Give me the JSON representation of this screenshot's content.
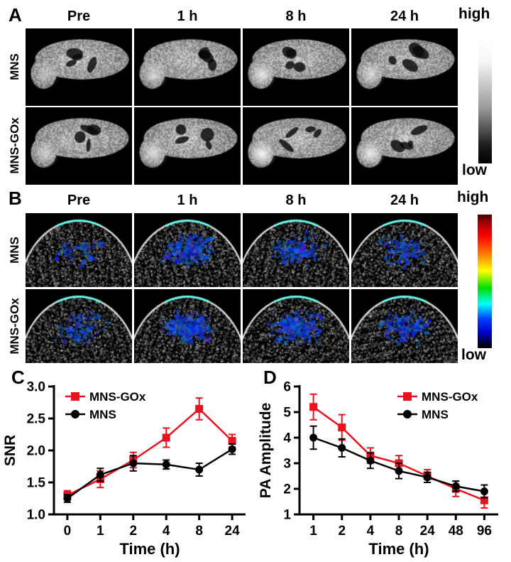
{
  "panel_a": {
    "label": "A",
    "columns": [
      "Pre",
      "1 h",
      "8 h",
      "24 h"
    ],
    "rows": [
      "MNS",
      "MNS-GOx"
    ],
    "colorbar_high": "high",
    "colorbar_low": "low"
  },
  "panel_b": {
    "label": "B",
    "columns": [
      "Pre",
      "1 h",
      "8 h",
      "24 h"
    ],
    "rows": [
      "MNS",
      "MNS-GOx"
    ],
    "colorbar_high": "high",
    "colorbar_low": "low"
  },
  "panel_c": {
    "label": "C"
  },
  "panel_d": {
    "label": "D"
  },
  "colors": {
    "mns_gox_series": "#e8131f",
    "mns_series": "#000000"
  },
  "chart_data": [
    {
      "id": "panel-c",
      "type": "line",
      "title": "",
      "xlabel": "Time (h)",
      "ylabel": "SNR",
      "categories": [
        "0",
        "1",
        "2",
        "4",
        "8",
        "24"
      ],
      "ylim": [
        1.0,
        3.0
      ],
      "ytick_values": [
        1.0,
        1.5,
        2.0,
        2.5,
        3.0
      ],
      "ytick_labels": [
        "1.0",
        "1.5",
        "2.0",
        "2.5",
        "3.0"
      ],
      "grid": false,
      "legend_position": "top-left",
      "series": [
        {
          "name": "MNS-GOx",
          "color": "#e8131f",
          "marker": "square",
          "values": [
            1.3,
            1.55,
            1.85,
            2.2,
            2.65,
            2.15
          ],
          "errors": [
            0.07,
            0.13,
            0.12,
            0.15,
            0.17,
            0.1
          ]
        },
        {
          "name": "MNS",
          "color": "#000000",
          "marker": "circle",
          "values": [
            1.25,
            1.62,
            1.8,
            1.78,
            1.7,
            2.02
          ],
          "errors": [
            0.06,
            0.1,
            0.12,
            0.07,
            0.1,
            0.08
          ]
        }
      ]
    },
    {
      "id": "panel-d",
      "type": "line",
      "title": "",
      "xlabel": "Time (h)",
      "ylabel": "PA Amplitude",
      "categories": [
        "1",
        "2",
        "4",
        "8",
        "24",
        "48",
        "96"
      ],
      "ylim": [
        1,
        6
      ],
      "ytick_values": [
        1,
        2,
        3,
        4,
        5,
        6
      ],
      "ytick_labels": [
        "1",
        "2",
        "3",
        "4",
        "5",
        "6"
      ],
      "grid": false,
      "legend_position": "top-right",
      "series": [
        {
          "name": "MNS-GOx",
          "color": "#e8131f",
          "marker": "square",
          "values": [
            5.2,
            4.4,
            3.3,
            3.0,
            2.5,
            2.0,
            1.55
          ],
          "errors": [
            0.5,
            0.5,
            0.3,
            0.3,
            0.25,
            0.3,
            0.3
          ]
        },
        {
          "name": "MNS",
          "color": "#000000",
          "marker": "circle",
          "values": [
            4.0,
            3.6,
            3.1,
            2.7,
            2.45,
            2.1,
            1.9
          ],
          "errors": [
            0.45,
            0.35,
            0.3,
            0.3,
            0.2,
            0.2,
            0.25
          ]
        }
      ]
    }
  ]
}
